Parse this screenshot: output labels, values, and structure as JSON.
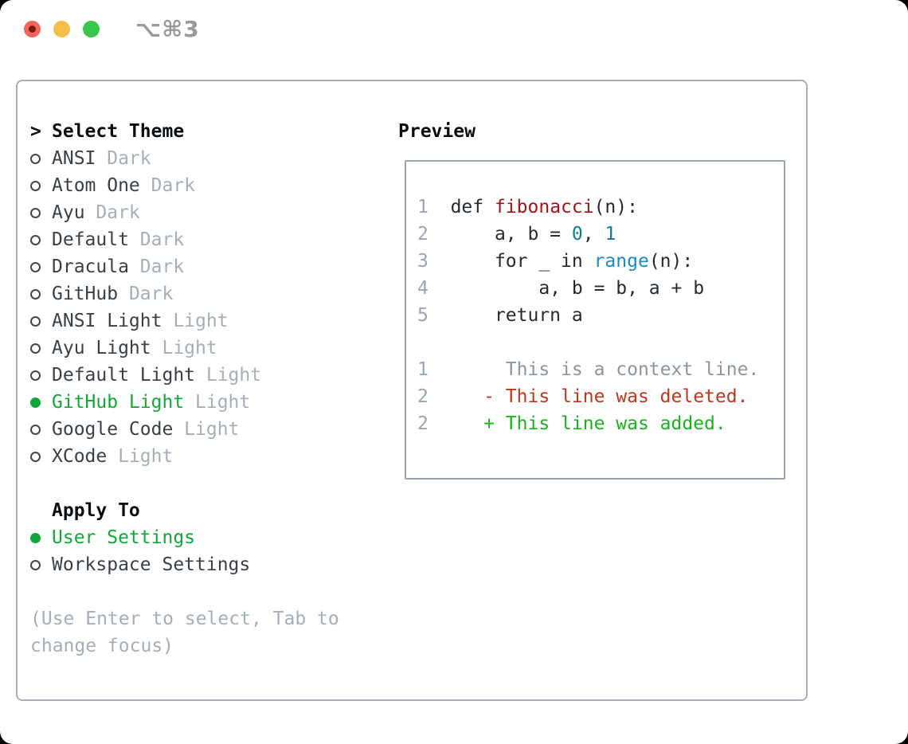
{
  "window": {
    "title": "⌥⌘3"
  },
  "theme_panel": {
    "header_marker": ">",
    "header_label": "Select Theme",
    "items": [
      {
        "label": "ANSI",
        "variant": "Dark",
        "selected": false
      },
      {
        "label": "Atom One",
        "variant": "Dark",
        "selected": false
      },
      {
        "label": "Ayu",
        "variant": "Dark",
        "selected": false
      },
      {
        "label": "Default",
        "variant": "Dark",
        "selected": false
      },
      {
        "label": "Dracula",
        "variant": "Dark",
        "selected": false
      },
      {
        "label": "GitHub",
        "variant": "Dark",
        "selected": false
      },
      {
        "label": "ANSI Light",
        "variant": "Light",
        "selected": false
      },
      {
        "label": "Ayu Light",
        "variant": "Light",
        "selected": false
      },
      {
        "label": "Default Light",
        "variant": "Light",
        "selected": false
      },
      {
        "label": "GitHub Light",
        "variant": "Light",
        "selected": true
      },
      {
        "label": "Google Code",
        "variant": "Light",
        "selected": false
      },
      {
        "label": "XCode",
        "variant": "Light",
        "selected": false
      }
    ],
    "apply_to": {
      "header": "Apply To",
      "options": [
        {
          "label": "User Settings",
          "selected": true
        },
        {
          "label": "Workspace Settings",
          "selected": false
        }
      ]
    },
    "hint_lines": [
      "(Use Enter to select, Tab to",
      "change focus)"
    ]
  },
  "preview": {
    "title": "Preview",
    "lines": [
      {
        "tokens": [
          {
            "t": "1",
            "c": "linenum"
          },
          {
            "t": "  ",
            "c": "plain"
          },
          {
            "t": "def ",
            "c": "plain"
          },
          {
            "t": "fibonacci",
            "c": "func"
          },
          {
            "t": "(n):",
            "c": "plain"
          }
        ]
      },
      {
        "tokens": [
          {
            "t": "2",
            "c": "linenum"
          },
          {
            "t": "      a, b = ",
            "c": "plain"
          },
          {
            "t": "0",
            "c": "number"
          },
          {
            "t": ", ",
            "c": "plain"
          },
          {
            "t": "1",
            "c": "number"
          }
        ]
      },
      {
        "tokens": [
          {
            "t": "3",
            "c": "linenum"
          },
          {
            "t": "      for _ in ",
            "c": "plain"
          },
          {
            "t": "range",
            "c": "builtin"
          },
          {
            "t": "(n):",
            "c": "plain"
          }
        ]
      },
      {
        "tokens": [
          {
            "t": "4",
            "c": "linenum"
          },
          {
            "t": "          a, b = b, a + b",
            "c": "plain"
          }
        ]
      },
      {
        "tokens": [
          {
            "t": "5",
            "c": "linenum"
          },
          {
            "t": "      return a",
            "c": "plain"
          }
        ]
      },
      {
        "tokens": []
      },
      {
        "tokens": [
          {
            "t": "1",
            "c": "linenum"
          },
          {
            "t": "       This is a context line.",
            "c": "context"
          }
        ]
      },
      {
        "tokens": [
          {
            "t": "2",
            "c": "linenum"
          },
          {
            "t": "     ",
            "c": "plain"
          },
          {
            "t": "- This line was deleted.",
            "c": "deleted"
          }
        ]
      },
      {
        "tokens": [
          {
            "t": "2",
            "c": "linenum"
          },
          {
            "t": "     ",
            "c": "plain"
          },
          {
            "t": "+ This line was added.",
            "c": "added"
          }
        ]
      }
    ]
  },
  "colors": {
    "accent_green": "#10a838",
    "text_primary": "#262b31",
    "text_muted": "#a6aeb8",
    "list_text": "#3a4046",
    "line_number": "#9aa5b3",
    "syntax_function_red": "#a31515",
    "syntax_number_teal": "#0e7e8a",
    "syntax_builtin_blue": "#1b8ac9",
    "diff_context": "#8e959d",
    "diff_deleted": "#c0371f",
    "diff_added": "#16b51e",
    "panel_border": "#a8afb7",
    "preview_border": "#9aa2ab",
    "titlebar_shortcut": "#9a9a9a",
    "traffic_red": "#f2655c",
    "traffic_red_dot": "#791712",
    "traffic_yellow": "#f6bd4a",
    "traffic_green": "#38c74a"
  }
}
